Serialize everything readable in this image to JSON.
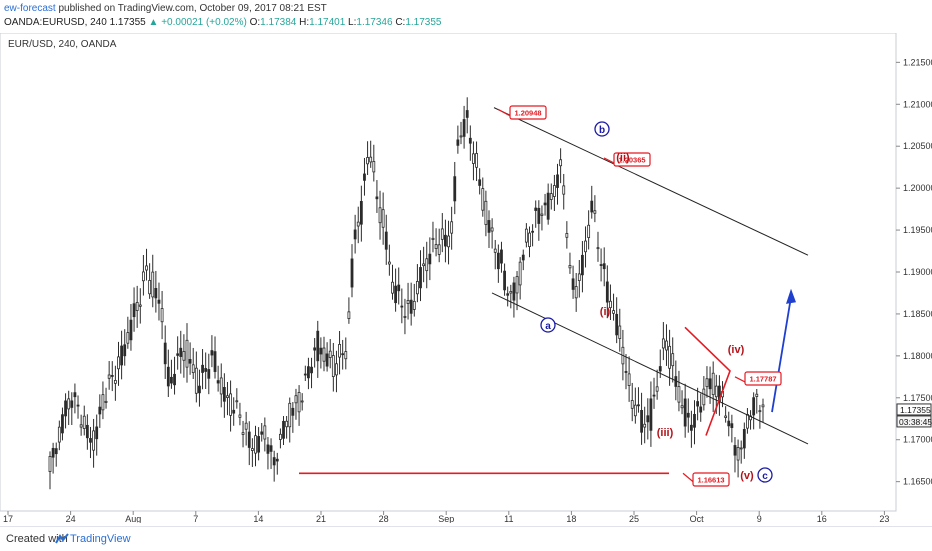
{
  "header": {
    "author": "ew-forecast",
    "published_text": "published on TradingView.com, October 09, 2017 08:21 EST",
    "symbol_line": "OANDA:EURUSD, 240",
    "last": "1.17355",
    "change": "▲ +0.00021 (+0.02%)",
    "o_label": "O:",
    "o_value": "1.17384",
    "h_label": "H:",
    "h_value": "1.17401",
    "l_label": "L:",
    "l_value": "1.17346",
    "c_label": "C:",
    "c_value": "1.17355"
  },
  "footer": {
    "created_with": "Created with",
    "brand": "TradingView",
    "logo_icon": "tradingview-logo-icon"
  },
  "chart_data": {
    "type": "candlestick",
    "title": "EUR/USD, 240, OANDA",
    "ylim": [
      1.1615,
      1.2185
    ],
    "y_ticks": [
      "1.21500",
      "1.21000",
      "1.20500",
      "1.20000",
      "1.19500",
      "1.19000",
      "1.18500",
      "1.18000",
      "1.17500",
      "1.17000",
      "1.16500"
    ],
    "x_ticks": [
      "17",
      "24",
      "Aug",
      "7",
      "14",
      "21",
      "28",
      "Sep",
      "11",
      "18",
      "25",
      "Oct",
      "9",
      "16",
      "23"
    ],
    "last_price_label": "1.17355",
    "countdown_label": "03:38:45",
    "price_path": [
      1.1662,
      1.169,
      1.173,
      1.176,
      1.174,
      1.1705,
      1.169,
      1.1735,
      1.177,
      1.179,
      1.181,
      1.1835,
      1.186,
      1.19,
      1.188,
      1.186,
      1.176,
      1.179,
      1.181,
      1.179,
      1.176,
      1.178,
      1.18,
      1.177,
      1.175,
      1.1735,
      1.171,
      1.169,
      1.17,
      1.172,
      1.167,
      1.169,
      1.172,
      1.174,
      1.176,
      1.179,
      1.181,
      1.18,
      1.179,
      1.1795,
      1.181,
      1.194,
      1.198,
      1.206,
      1.199,
      1.195,
      1.188,
      1.187,
      1.186,
      1.187,
      1.1895,
      1.191,
      1.193,
      1.194,
      1.195,
      1.206,
      1.208,
      1.204,
      1.2,
      1.196,
      1.193,
      1.19,
      1.187,
      1.189,
      1.193,
      1.195,
      1.197,
      1.198,
      1.201,
      1.203,
      1.189,
      1.187,
      1.192,
      1.199,
      1.193,
      1.188,
      1.184,
      1.181,
      1.176,
      1.174,
      1.172,
      1.173,
      1.178,
      1.182,
      1.178,
      1.174,
      1.172,
      1.173,
      1.176,
      1.177,
      1.175,
      1.173,
      1.17,
      1.169,
      1.173,
      1.174,
      1.1735
    ],
    "trend_lines": [
      {
        "name": "upper-channel-line",
        "from": [
          "Sep 9",
          1.2096
        ],
        "to": [
          "Oct 16",
          1.192
        ]
      },
      {
        "name": "lower-channel-line",
        "from": [
          "Sep 8",
          1.1875
        ],
        "to": [
          "Oct 16",
          1.1695
        ]
      }
    ],
    "price_labels": [
      "1.20948",
      "1.20365",
      "1.17787",
      "1.16613"
    ],
    "wave_labels": [
      {
        "text": "b",
        "circled": true,
        "color": "#1a1aa6"
      },
      {
        "text": "a",
        "circled": true,
        "color": "#1a1aa6"
      },
      {
        "text": "c",
        "circled": true,
        "color": "#1a1aa6"
      },
      {
        "text": "(i)",
        "circled": false,
        "color": "#b3141b"
      },
      {
        "text": "(ii)",
        "circled": false,
        "color": "#b3141b"
      },
      {
        "text": "(iii)",
        "circled": false,
        "color": "#b3141b"
      },
      {
        "text": "(iv)",
        "circled": false,
        "color": "#b3141b"
      },
      {
        "text": "(v)",
        "circled": false,
        "color": "#b3141b"
      }
    ],
    "colors": {
      "candles": "#2b2b2b",
      "channel": "#222222",
      "red_annotations": "#e31b23",
      "blue_arrow": "#1f3fcf",
      "wave_blue": "#1a1aa6",
      "wave_red": "#b3141b"
    }
  }
}
